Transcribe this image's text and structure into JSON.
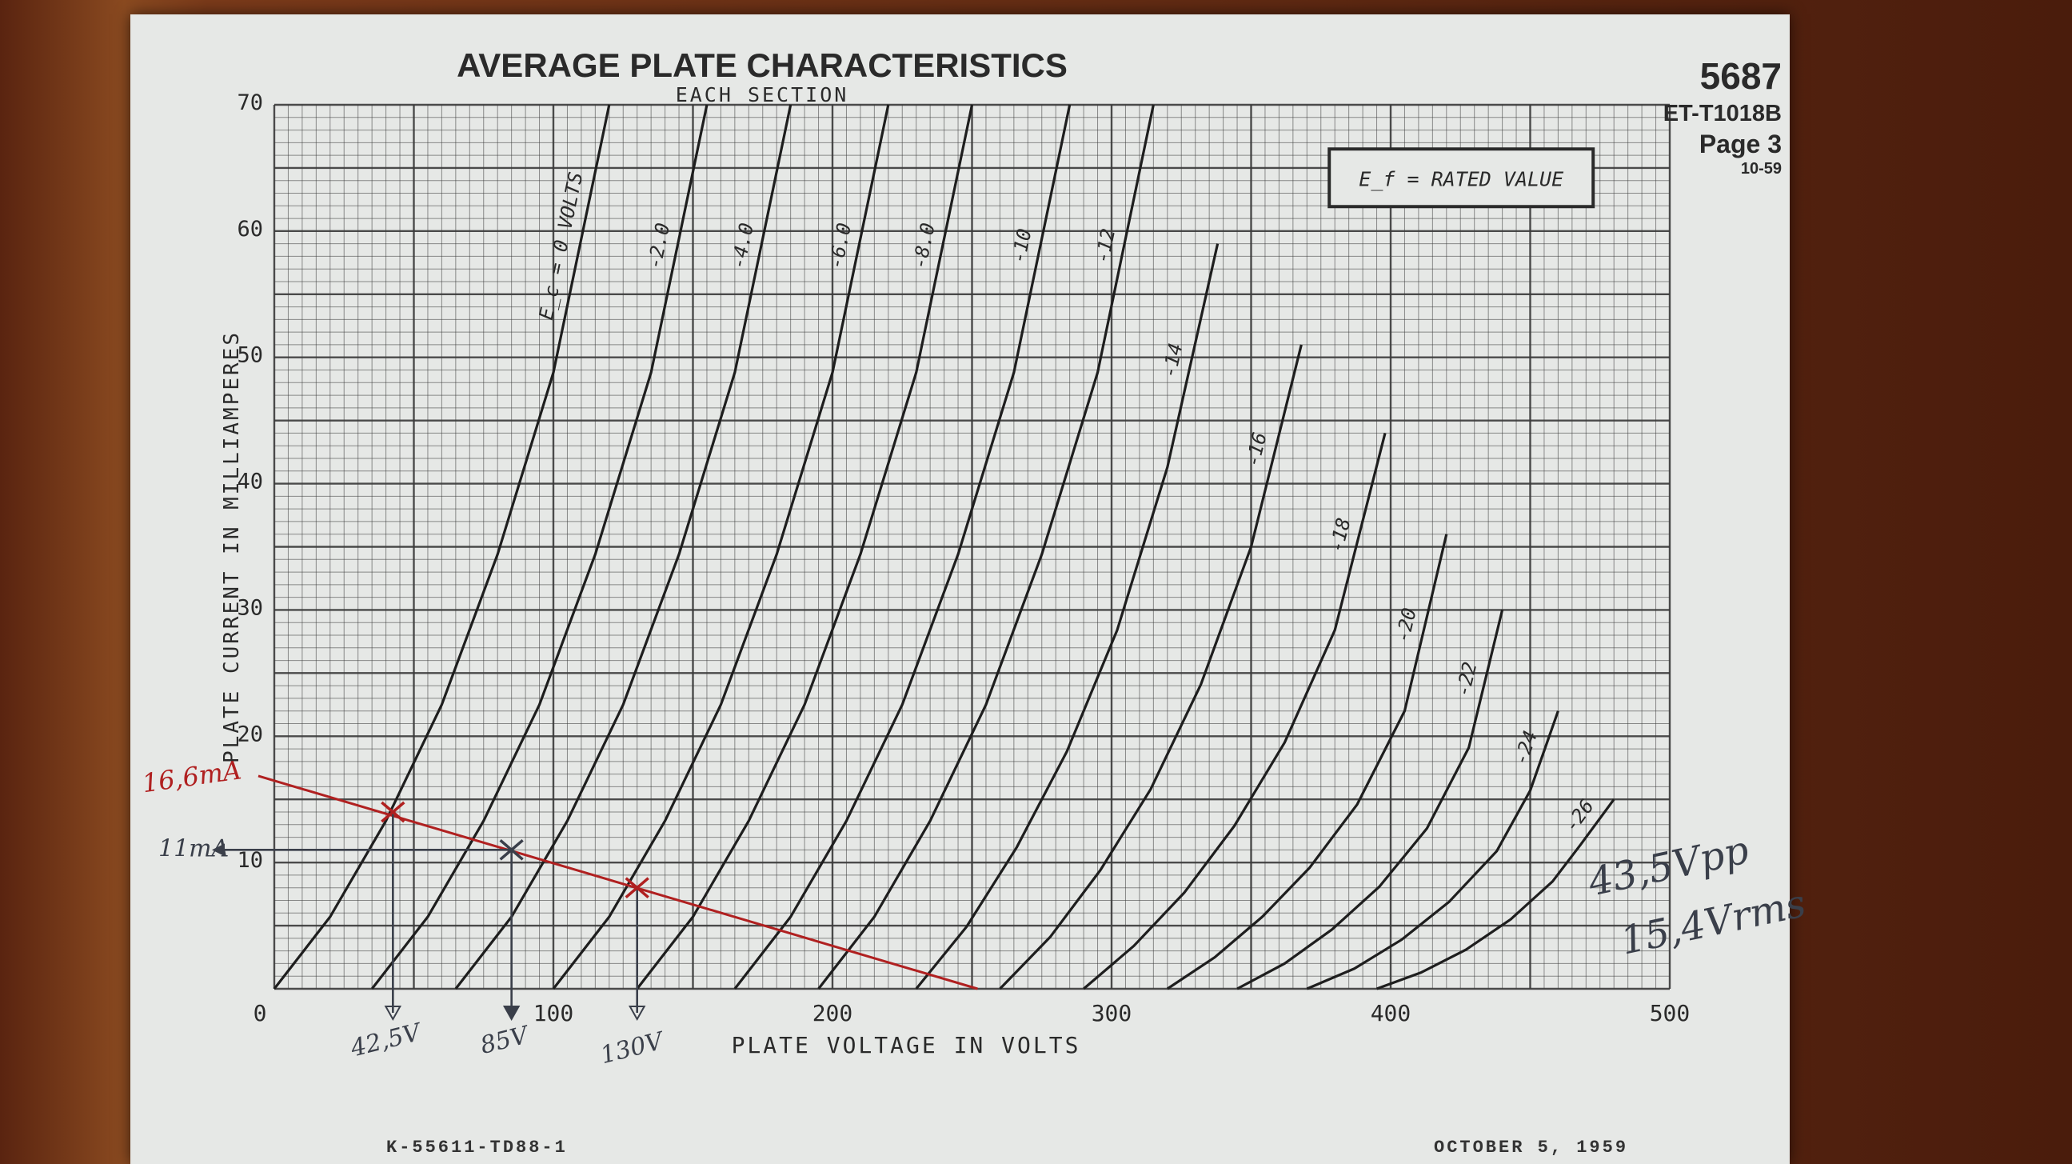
{
  "document": {
    "tube": "5687",
    "doc_number": "ET-T1018B",
    "page": "Page 3",
    "page_date": "10-59",
    "footer_left": "K-55611-TD88-1",
    "footer_right": "OCTOBER 5, 1959"
  },
  "chart_data": {
    "type": "line",
    "title": "AVERAGE PLATE CHARACTERISTICS",
    "subtitle": "EACH SECTION",
    "xlabel": "PLATE VOLTAGE IN VOLTS",
    "ylabel": "PLATE CURRENT IN MILLIAMPERES",
    "xlim": [
      0,
      500
    ],
    "ylim": [
      0,
      70
    ],
    "x_ticks": [
      "0",
      "100",
      "200",
      "300",
      "400",
      "500"
    ],
    "y_ticks": [
      "10",
      "20",
      "30",
      "40",
      "50",
      "60",
      "70"
    ],
    "grid": true,
    "note_box": "E_f = RATED VALUE",
    "series": [
      {
        "name": "E_c = 0 VOLTS",
        "x": [
          0,
          20,
          40,
          60,
          80,
          100,
          120
        ],
        "y": [
          0,
          5.7,
          13.3,
          22.5,
          34.4,
          48.8,
          70
        ]
      },
      {
        "name": "-2.0",
        "x": [
          35,
          55,
          75,
          95,
          115,
          135,
          155
        ],
        "y": [
          0,
          5.7,
          13.3,
          22.5,
          34.4,
          48.8,
          70
        ]
      },
      {
        "name": "-4.0",
        "x": [
          65,
          85,
          105,
          125,
          145,
          165,
          185
        ],
        "y": [
          0,
          5.7,
          13.3,
          22.5,
          34.4,
          48.8,
          70
        ]
      },
      {
        "name": "-6.0",
        "x": [
          100,
          120,
          140,
          160,
          180,
          200,
          220
        ],
        "y": [
          0,
          5.7,
          13.3,
          22.5,
          34.4,
          48.8,
          70
        ]
      },
      {
        "name": "-8.0",
        "x": [
          130,
          150,
          170,
          190,
          210,
          230,
          250
        ],
        "y": [
          0,
          5.7,
          13.3,
          22.5,
          34.4,
          48.8,
          70
        ]
      },
      {
        "name": "-10",
        "x": [
          165,
          185,
          205,
          225,
          245,
          265,
          285
        ],
        "y": [
          0,
          5.7,
          13.3,
          22.5,
          34.4,
          48.8,
          70
        ]
      },
      {
        "name": "-12",
        "x": [
          195,
          215,
          235,
          255,
          275,
          295,
          315
        ],
        "y": [
          0,
          5.7,
          13.3,
          22.5,
          34.4,
          48.8,
          70
        ]
      },
      {
        "name": "-14",
        "x": [
          230,
          248,
          266,
          284,
          302,
          320,
          338
        ],
        "y": [
          0,
          4.9,
          11.2,
          18.8,
          28.4,
          41.3,
          59
        ]
      },
      {
        "name": "-16",
        "x": [
          260,
          278,
          296,
          314,
          332,
          350,
          368
        ],
        "y": [
          0,
          4.1,
          9.4,
          15.8,
          24.1,
          35,
          51
        ]
      },
      {
        "name": "-18",
        "x": [
          290,
          308,
          326,
          344,
          362,
          380,
          398
        ],
        "y": [
          0,
          3.4,
          7.6,
          12.9,
          19.5,
          28.4,
          44
        ]
      },
      {
        "name": "-20",
        "x": [
          320,
          337,
          354,
          371,
          388,
          405,
          420
        ],
        "y": [
          0,
          2.5,
          5.7,
          9.6,
          14.6,
          22,
          36
        ]
      },
      {
        "name": "-22",
        "x": [
          345,
          362,
          379,
          396,
          413,
          428,
          440
        ],
        "y": [
          0,
          2,
          4.7,
          8.1,
          12.7,
          19.1,
          30
        ]
      },
      {
        "name": "-24",
        "x": [
          370,
          387,
          404,
          421,
          438,
          450,
          460
        ],
        "y": [
          0,
          1.6,
          3.9,
          6.9,
          10.9,
          15.7,
          22
        ]
      },
      {
        "name": "-26",
        "x": [
          395,
          411,
          427,
          443,
          458,
          468,
          480
        ],
        "y": [
          0,
          1.3,
          3.1,
          5.5,
          8.5,
          11.4,
          15
        ]
      }
    ],
    "annotations": {
      "load_line": {
        "x": [
          0,
          252
        ],
        "y": [
          16.6,
          0
        ],
        "color": "#b02020"
      },
      "handwritten": [
        "16,6mA",
        "11mA",
        "42,5V",
        "85V",
        "130V"
      ],
      "operating_points": [
        {
          "x": 42.5,
          "y": 14,
          "label": "42,5V"
        },
        {
          "x": 85,
          "y": 11,
          "label": "85V",
          "current_label": "11mA"
        },
        {
          "x": 130,
          "y": 8,
          "label": "130V"
        }
      ],
      "curve_color": "#1e1e1e",
      "grid_color": "#3a3a3a",
      "handwriting_color": "#3a3f4a"
    }
  },
  "handwritten_notes": {
    "vpp": "43,5Vpp",
    "vrms": "15,4Vrms"
  }
}
